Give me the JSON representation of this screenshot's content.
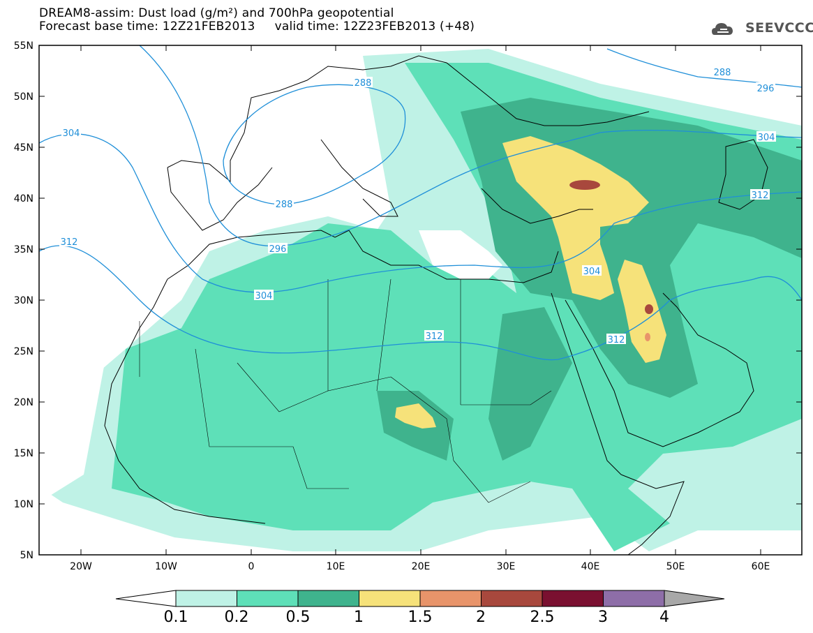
{
  "title": {
    "line1": "DREAM8-assim: Dust load (g/m²) and 700hPa geopotential",
    "line2": "Forecast base time: 12Z21FEB2013     valid time: 12Z23FEB2013 (+48)"
  },
  "logo": {
    "text": "SEEVCCC",
    "icon": "cloud-icon"
  },
  "map": {
    "lat_labels": [
      "55N",
      "50N",
      "45N",
      "40N",
      "35N",
      "30N",
      "25N",
      "20N",
      "15N",
      "10N",
      "5N"
    ],
    "lon_labels": [
      "20W",
      "10W",
      "0",
      "10E",
      "20E",
      "30E",
      "40E",
      "50E",
      "60E"
    ],
    "contour_labels": [
      "288",
      "288",
      "288",
      "296",
      "296",
      "304",
      "304",
      "304",
      "304",
      "312",
      "312",
      "312",
      "312"
    ]
  },
  "colorbar": {
    "ticks": [
      "0.1",
      "0.2",
      "0.5",
      "1",
      "1.5",
      "2",
      "2.5",
      "3",
      "4"
    ],
    "colors": [
      "#bff2e6",
      "#5ee0b8",
      "#3fb38d",
      "#f6e27a",
      "#e8946a",
      "#a8483d",
      "#7a1030",
      "#8e6ea8"
    ],
    "under_color": "#ffffff",
    "over_color": "#a8a8a8"
  }
}
